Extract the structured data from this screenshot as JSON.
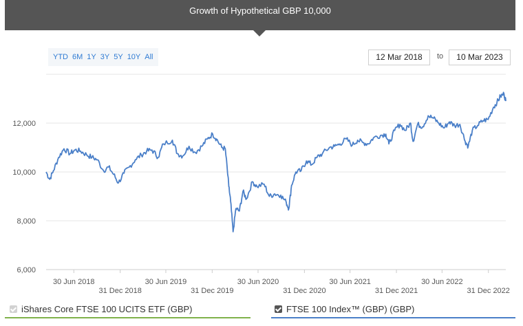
{
  "header": {
    "title": "Growth of Hypothetical GBP 10,000"
  },
  "range_buttons": [
    "YTD",
    "6M",
    "1Y",
    "3Y",
    "5Y",
    "10Y",
    "All"
  ],
  "date_range": {
    "from": "12 Mar 2018",
    "to_label": "to",
    "to": "10 Mar 2023"
  },
  "legend": [
    {
      "label": "iShares Core FTSE 100 UCITS ETF (GBP)",
      "checked": false,
      "color": "#7fb24a"
    },
    {
      "label": "FTSE 100 Index™ (GBP) (GBP)",
      "checked": true,
      "color": "#4a7fc8"
    }
  ],
  "chart_data": {
    "type": "line",
    "title": "",
    "xlabel": "",
    "ylabel": "",
    "ylim": [
      6000,
      14000
    ],
    "yticks": [
      6000,
      8000,
      10000,
      12000
    ],
    "ytick_labels": [
      "6,000",
      "8,000",
      "10,000",
      "12,000"
    ],
    "x_ticks": [
      "30 Jun 2018",
      "31 Dec 2018",
      "30 Jun 2019",
      "31 Dec 2019",
      "30 Jun 2020",
      "31 Dec 2020",
      "30 Jun 2021",
      "31 Dec 2021",
      "30 Jun 2022",
      "31 Dec 2022"
    ],
    "xrange": [
      "2018-03-12",
      "2023-03-10"
    ],
    "grid": "horizontal",
    "series": [
      {
        "name": "FTSE 100 Index™ (GBP) (GBP)",
        "color": "#4a7fc8",
        "x": [
          "2018-03-12",
          "2018-03-26",
          "2018-04-10",
          "2018-05-01",
          "2018-05-22",
          "2018-06-15",
          "2018-07-05",
          "2018-07-27",
          "2018-08-20",
          "2018-09-10",
          "2018-10-01",
          "2018-10-26",
          "2018-11-15",
          "2018-12-05",
          "2018-12-24",
          "2019-01-15",
          "2019-02-05",
          "2019-03-01",
          "2019-03-25",
          "2019-04-15",
          "2019-05-06",
          "2019-05-31",
          "2019-06-20",
          "2019-07-26",
          "2019-08-15",
          "2019-09-05",
          "2019-09-30",
          "2019-10-25",
          "2019-11-20",
          "2019-12-12",
          "2020-01-02",
          "2020-01-17",
          "2020-02-07",
          "2020-02-21",
          "2020-03-06",
          "2020-03-13",
          "2020-03-23",
          "2020-04-03",
          "2020-04-17",
          "2020-05-01",
          "2020-05-15",
          "2020-06-08",
          "2020-06-26",
          "2020-07-24",
          "2020-08-14",
          "2020-09-04",
          "2020-09-28",
          "2020-10-20",
          "2020-10-30",
          "2020-11-10",
          "2020-11-27",
          "2020-12-18",
          "2021-01-08",
          "2021-01-29",
          "2021-02-19",
          "2021-03-12",
          "2021-04-09",
          "2021-04-30",
          "2021-05-21",
          "2021-06-15",
          "2021-07-09",
          "2021-07-30",
          "2021-08-20",
          "2021-09-10",
          "2021-10-01",
          "2021-10-29",
          "2021-11-19",
          "2021-12-01",
          "2021-12-24",
          "2022-01-14",
          "2022-02-04",
          "2022-02-25",
          "2022-03-07",
          "2022-03-25",
          "2022-04-14",
          "2022-05-06",
          "2022-05-27",
          "2022-06-17",
          "2022-07-08",
          "2022-07-29",
          "2022-08-19",
          "2022-09-09",
          "2022-09-30",
          "2022-10-12",
          "2022-10-28",
          "2022-11-18",
          "2022-12-09",
          "2022-12-30",
          "2023-01-20",
          "2023-02-03",
          "2023-02-17",
          "2023-03-03",
          "2023-03-10"
        ],
        "values": [
          10000,
          9700,
          10050,
          10600,
          10950,
          10750,
          10900,
          10850,
          10700,
          10600,
          10500,
          10050,
          10200,
          9900,
          9550,
          9950,
          10200,
          10500,
          10700,
          10850,
          10900,
          10600,
          11150,
          11300,
          10750,
          10650,
          11050,
          10800,
          11050,
          11350,
          11550,
          11350,
          11000,
          10950,
          9400,
          8800,
          7550,
          8500,
          8400,
          9200,
          8900,
          9600,
          9400,
          9500,
          9000,
          9100,
          9050,
          8750,
          8500,
          9450,
          10000,
          10050,
          10450,
          10300,
          10600,
          10750,
          11000,
          11050,
          11150,
          11350,
          11100,
          11300,
          11200,
          11150,
          11400,
          11500,
          11550,
          11150,
          11700,
          11950,
          11700,
          12000,
          11250,
          11950,
          11850,
          12300,
          12200,
          12000,
          11800,
          12050,
          11900,
          11950,
          11250,
          11050,
          11700,
          11900,
          12100,
          12150,
          12650,
          12850,
          13100,
          13200,
          12900
        ]
      }
    ]
  }
}
